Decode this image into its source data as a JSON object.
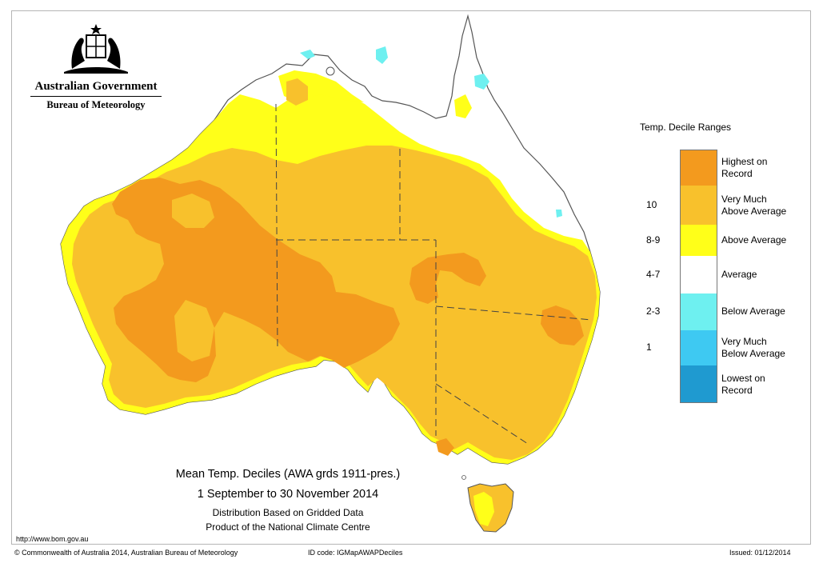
{
  "header": {
    "government": "Australian Government",
    "bureau": "Bureau of Meteorology"
  },
  "legend": {
    "title": "Temp. Decile Ranges",
    "items": [
      {
        "range": "",
        "label_line1": "Highest on",
        "label_line2": "Record",
        "color": "#f39a1e"
      },
      {
        "range": "10",
        "label_line1": "Very Much",
        "label_line2": "Above Average",
        "color": "#f8c12c"
      },
      {
        "range": "8-9",
        "label_line1": "Above Average",
        "label_line2": "",
        "color": "#ffff19"
      },
      {
        "range": "4-7",
        "label_line1": "Average",
        "label_line2": "",
        "color": "#ffffff"
      },
      {
        "range": "2-3",
        "label_line1": "Below Average",
        "label_line2": "",
        "color": "#6ef0f0"
      },
      {
        "range": "1",
        "label_line1": "Very Much",
        "label_line2": "Below Average",
        "color": "#3ec9f2"
      },
      {
        "range": "",
        "label_line1": "Lowest on",
        "label_line2": "Record",
        "color": "#1f9ad0"
      }
    ]
  },
  "caption": {
    "line1": "Mean Temp. Deciles (AWA grds 1911-pres.)",
    "line2": "1 September to 30 November 2014",
    "line3": "Distribution Based on Gridded Data",
    "line4": "Product of the National Climate Centre"
  },
  "footer": {
    "url": "http://www.bom.gov.au",
    "copyright": "© Commonwealth of Australia 2014, Australian Bureau of Meteorology",
    "id_code": "ID code: IGMapAWAPDeciles",
    "issued": "Issued: 01/12/2014"
  }
}
